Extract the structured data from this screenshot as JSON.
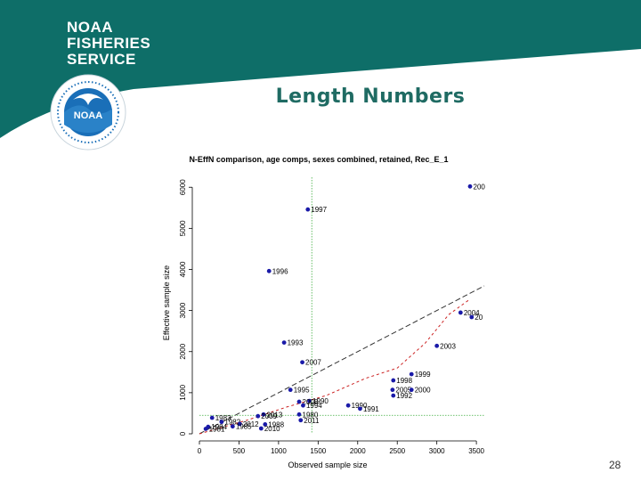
{
  "header": {
    "org_lines": [
      "NOAA",
      "FISHERIES",
      "SERVICE"
    ],
    "seal_text": "NOAA",
    "brand_color": "#0e6e68",
    "seal_color": "#1a6fb8"
  },
  "slide": {
    "title": "Length Numbers",
    "page_number": "28"
  },
  "chart_data": {
    "type": "scatter",
    "title": "N-EffN comparison, age comps, sexes combined, retained, Rec_E_1",
    "xlabel": "Observed sample size",
    "ylabel": "Effective sample size",
    "xlim": [
      0,
      3600
    ],
    "ylim": [
      0,
      6200
    ],
    "xticks": [
      0,
      500,
      1000,
      1500,
      2000,
      2500,
      3000,
      3500
    ],
    "yticks": [
      0,
      1000,
      2000,
      3000,
      4000,
      5000,
      6000
    ],
    "point_color": "#1a1aa8",
    "points": [
      {
        "label": "200",
        "x": 3420,
        "y": 6020
      },
      {
        "label": "1997",
        "x": 1370,
        "y": 5460
      },
      {
        "label": "1996",
        "x": 880,
        "y": 3960
      },
      {
        "label": "2004",
        "x": 3300,
        "y": 2950
      },
      {
        "label": "20",
        "x": 3440,
        "y": 2840
      },
      {
        "label": "1993",
        "x": 1070,
        "y": 2220
      },
      {
        "label": "2003",
        "x": 3000,
        "y": 2140
      },
      {
        "label": "2007",
        "x": 1300,
        "y": 1740
      },
      {
        "label": "1999",
        "x": 2680,
        "y": 1450
      },
      {
        "label": "1998",
        "x": 2450,
        "y": 1300
      },
      {
        "label": "1995",
        "x": 1150,
        "y": 1070
      },
      {
        "label": "2005",
        "x": 2440,
        "y": 1070
      },
      {
        "label": "2000",
        "x": 2680,
        "y": 1070
      },
      {
        "label": "1992",
        "x": 2450,
        "y": 930
      },
      {
        "label": "1990",
        "x": 1390,
        "y": 800
      },
      {
        "label": "2008",
        "x": 1260,
        "y": 780
      },
      {
        "label": "1994",
        "x": 1310,
        "y": 690
      },
      {
        "label": "1990",
        "x": 1880,
        "y": 690
      },
      {
        "label": "1991",
        "x": 2030,
        "y": 610
      },
      {
        "label": "2013",
        "x": 810,
        "y": 470
      },
      {
        "label": "1980",
        "x": 1260,
        "y": 470
      },
      {
        "label": "2009",
        "x": 740,
        "y": 430
      },
      {
        "label": "2011",
        "x": 1280,
        "y": 330
      },
      {
        "label": "1983",
        "x": 160,
        "y": 390
      },
      {
        "label": "1982",
        "x": 280,
        "y": 290
      },
      {
        "label": "2012",
        "x": 510,
        "y": 240
      },
      {
        "label": "1988",
        "x": 830,
        "y": 230
      },
      {
        "label": "1984",
        "x": 110,
        "y": 170
      },
      {
        "label": "1985",
        "x": 420,
        "y": 180
      },
      {
        "label": "1981",
        "x": 80,
        "y": 120
      },
      {
        "label": "2010",
        "x": 780,
        "y": 130
      }
    ],
    "lines": [
      {
        "name": "1:1",
        "color": "#333333",
        "dash": "6,3",
        "points": [
          [
            0,
            0
          ],
          [
            3600,
            3600
          ]
        ]
      },
      {
        "name": "smoother",
        "color": "#cc2222",
        "dash": "3,3",
        "points": [
          [
            0,
            0
          ],
          [
            600,
            330
          ],
          [
            1100,
            650
          ],
          [
            1600,
            930
          ],
          [
            2100,
            1350
          ],
          [
            2500,
            1600
          ],
          [
            2850,
            2200
          ],
          [
            3150,
            2900
          ],
          [
            3400,
            3250
          ]
        ]
      }
    ],
    "reference_lines": [
      {
        "orientation": "vertical",
        "value": 1420,
        "color": "#3fae3f"
      },
      {
        "orientation": "horizontal",
        "value": 450,
        "color": "#3fae3f"
      }
    ]
  }
}
